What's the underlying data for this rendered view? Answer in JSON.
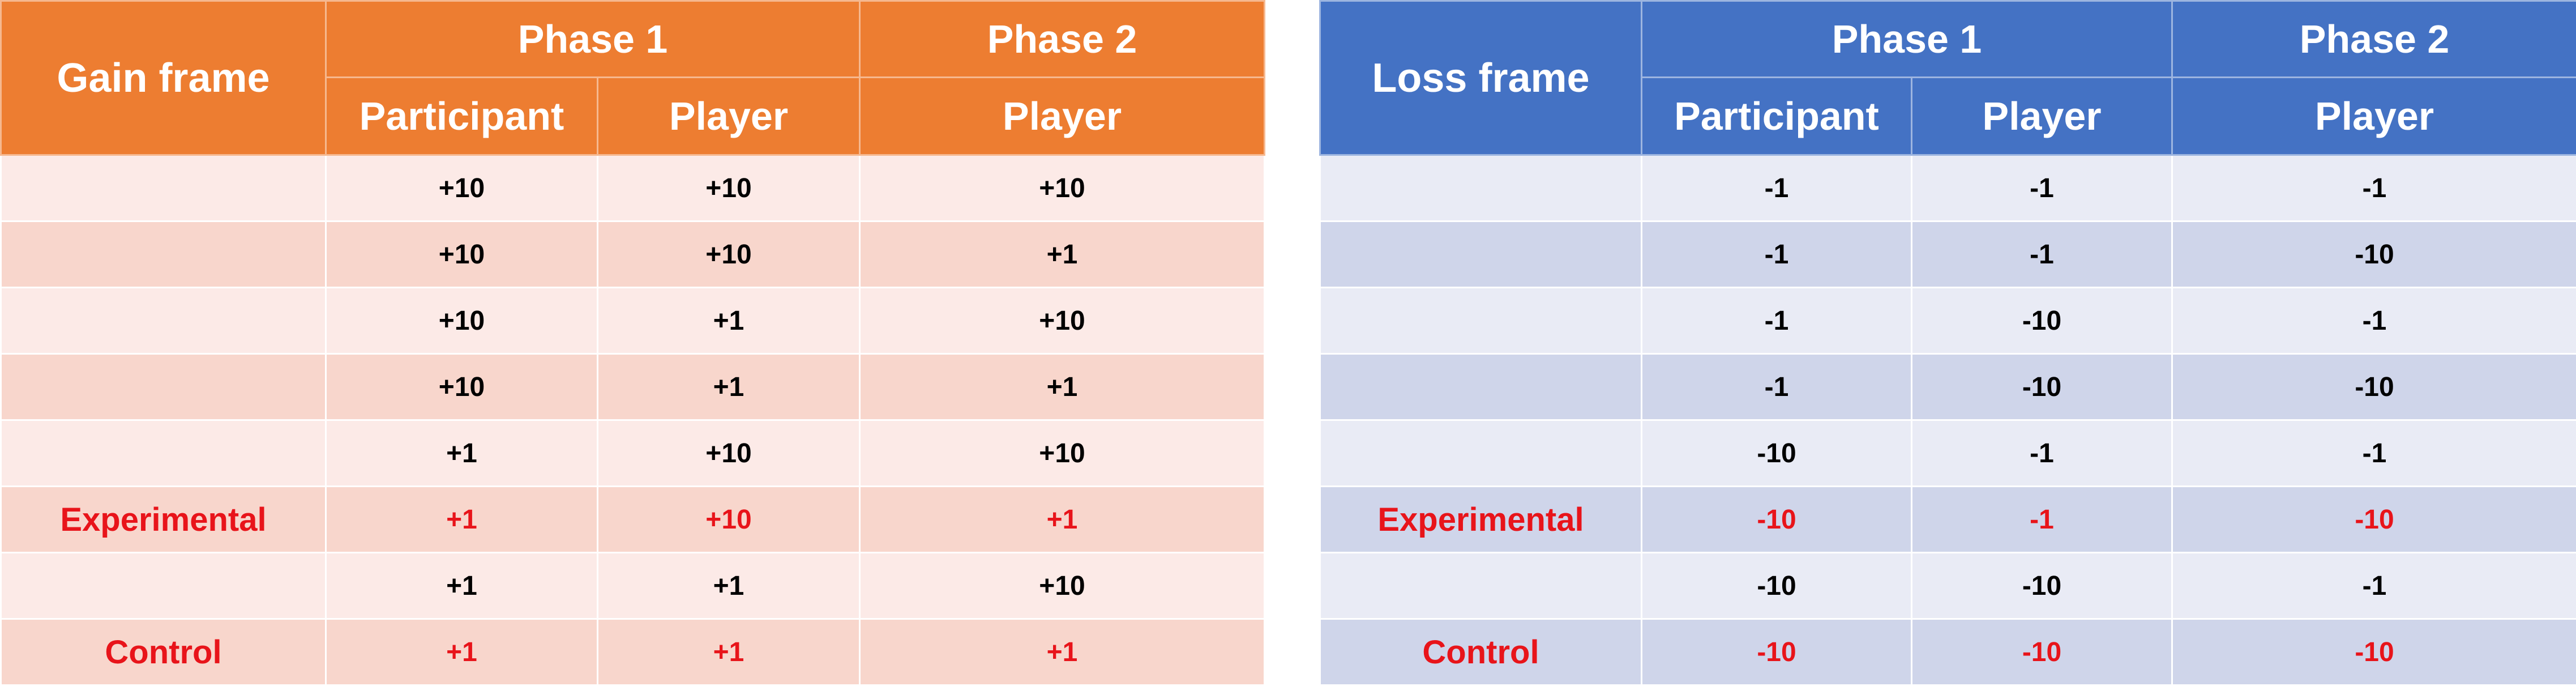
{
  "gain": {
    "title": "Gain frame",
    "phase1": "Phase 1",
    "phase2": "Phase 2",
    "col_participant": "Participant",
    "col_player": "Player",
    "col_player2": "Player",
    "rows": [
      {
        "label": "",
        "p": "+10",
        "pl": "+10",
        "p2": "+10"
      },
      {
        "label": "",
        "p": "+10",
        "pl": "+10",
        "p2": "+1"
      },
      {
        "label": "",
        "p": "+10",
        "pl": "+1",
        "p2": "+10"
      },
      {
        "label": "",
        "p": "+10",
        "pl": "+1",
        "p2": "+1"
      },
      {
        "label": "",
        "p": "+1",
        "pl": "+10",
        "p2": "+10"
      },
      {
        "label": "Experimental",
        "p": "+1",
        "pl": "+10",
        "p2": "+1"
      },
      {
        "label": "",
        "p": "+1",
        "pl": "+1",
        "p2": "+10"
      },
      {
        "label": "Control",
        "p": "+1",
        "pl": "+1",
        "p2": "+1"
      }
    ]
  },
  "loss": {
    "title": "Loss frame",
    "phase1": "Phase 1",
    "phase2": "Phase 2",
    "col_participant": "Participant",
    "col_player": "Player",
    "col_player2": "Player",
    "rows": [
      {
        "label": "",
        "p": "-1",
        "pl": "-1",
        "p2": "-1"
      },
      {
        "label": "",
        "p": "-1",
        "pl": "-1",
        "p2": "-10"
      },
      {
        "label": "",
        "p": "-1",
        "pl": "-10",
        "p2": "-1"
      },
      {
        "label": "",
        "p": "-1",
        "pl": "-10",
        "p2": "-10"
      },
      {
        "label": "",
        "p": "-10",
        "pl": "-1",
        "p2": "-1"
      },
      {
        "label": "Experimental",
        "p": "-10",
        "pl": "-1",
        "p2": "-10"
      },
      {
        "label": "",
        "p": "-10",
        "pl": "-10",
        "p2": "-1"
      },
      {
        "label": "Control",
        "p": "-10",
        "pl": "-10",
        "p2": "-10"
      }
    ]
  },
  "colors": {
    "gain_header": "#ed7d31",
    "gain_row_light": "#fceae7",
    "gain_row_dark": "#f8d6cc",
    "loss_header": "#4472c4",
    "loss_row_light": "#e9ebf5",
    "loss_row_dark": "#cfd5ea",
    "highlight_text": "#e8141a"
  }
}
